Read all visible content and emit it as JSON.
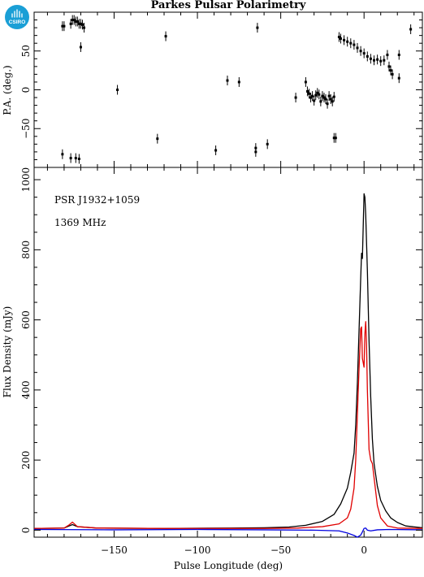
{
  "title": "Parkes Pulsar Polarimetry",
  "logo_text": "CSIRO",
  "colors": {
    "total_intensity": "#000000",
    "linear_polarization": "#e00000",
    "circular_polarization": "#0000e0",
    "logo": "#1a9fd6"
  },
  "chart_data": [
    {
      "type": "scatter",
      "panel": "position-angle",
      "ylabel": "P.A. (deg.)",
      "xlim": [
        -198,
        35
      ],
      "ylim": [
        -100,
        100
      ],
      "yticks": [
        -50,
        0,
        50
      ],
      "error_bars": true,
      "x": [
        -181,
        -180,
        -176,
        -175,
        -174,
        -173,
        -172,
        -171,
        -170,
        -169,
        -168,
        -170,
        -148,
        -124,
        -119,
        -89,
        -82,
        -75,
        -65,
        -65,
        -64,
        -58,
        -41,
        -35,
        -34,
        -33,
        -32,
        -31,
        -30,
        -29,
        -28,
        -27,
        -26,
        -25,
        -24,
        -23,
        -22,
        -21,
        -20,
        -19,
        -18,
        -17,
        -18,
        -15,
        -14,
        -12,
        -10,
        -8,
        -6,
        -4,
        -2,
        0,
        2,
        4,
        6,
        8,
        10,
        12,
        14,
        15,
        16,
        17,
        21,
        21,
        28,
        -181,
        -176,
        -173,
        -171
      ],
      "y": [
        82,
        82,
        85,
        90,
        90,
        88,
        88,
        85,
        85,
        84,
        80,
        55,
        0,
        -63,
        69,
        -78,
        12,
        10,
        -75,
        -80,
        80,
        -70,
        -10,
        10,
        -2,
        -5,
        -10,
        -8,
        -14,
        -7,
        -4,
        -6,
        -15,
        -8,
        -10,
        -12,
        -18,
        -8,
        -12,
        -15,
        -9,
        -62,
        -62,
        68,
        66,
        64,
        62,
        60,
        58,
        54,
        50,
        47,
        43,
        40,
        38,
        39,
        37,
        38,
        45,
        30,
        25,
        20,
        45,
        15,
        78,
        -83,
        -88,
        -88,
        -89
      ]
    },
    {
      "type": "line",
      "panel": "flux-profile",
      "xlabel": "Pulse Longitude (deg)",
      "ylabel": "Flux Density (mJy)",
      "xlim": [
        -198,
        35
      ],
      "ylim": [
        -20,
        1035
      ],
      "xticks": [
        -150,
        -100,
        -50,
        0
      ],
      "yticks": [
        0,
        200,
        400,
        600,
        800,
        1000
      ],
      "annotations": [
        "PSR J1932+1059",
        "1369 MHz"
      ],
      "series": [
        {
          "color": "#000000",
          "x": [
            -198,
            -180,
            -177,
            -175,
            -172,
            -160,
            -120,
            -80,
            -60,
            -45,
            -35,
            -25,
            -18,
            -14,
            -10,
            -8,
            -6,
            -5,
            -4,
            -3,
            -2,
            -1.5,
            -1,
            0,
            0.5,
            1,
            2,
            3,
            4,
            5,
            6,
            8,
            10,
            13,
            16,
            20,
            25,
            35
          ],
          "y": [
            5,
            6,
            12,
            16,
            10,
            6,
            5,
            6,
            7,
            9,
            14,
            25,
            45,
            75,
            120,
            165,
            220,
            300,
            420,
            570,
            720,
            790,
            775,
            960,
            950,
            900,
            740,
            540,
            380,
            260,
            190,
            125,
            85,
            55,
            35,
            22,
            12,
            7
          ]
        },
        {
          "color": "#e00000",
          "x": [
            -198,
            -180,
            -177,
            -175,
            -172,
            -160,
            -120,
            -80,
            -60,
            -40,
            -25,
            -15,
            -10,
            -8,
            -6,
            -5,
            -4,
            -3,
            -2,
            -1.5,
            -1,
            0,
            0.5,
            1,
            1.5,
            2,
            3,
            4,
            5,
            6,
            8,
            10,
            14,
            20,
            35
          ],
          "y": [
            5,
            6,
            15,
            23,
            10,
            6,
            5,
            5,
            5,
            6,
            10,
            18,
            35,
            60,
            120,
            200,
            330,
            460,
            575,
            580,
            490,
            465,
            560,
            595,
            530,
            400,
            230,
            200,
            190,
            150,
            70,
            35,
            12,
            6,
            5
          ]
        },
        {
          "color": "#0000e0",
          "x": [
            -198,
            -150,
            -100,
            -60,
            -30,
            -15,
            -10,
            -6,
            -4,
            -2,
            -1,
            0,
            1,
            2,
            4,
            8,
            15,
            35
          ],
          "y": [
            2,
            1,
            2,
            1,
            0,
            -2,
            -8,
            -15,
            -20,
            -14,
            -5,
            5,
            6,
            0,
            -2,
            1,
            2,
            1
          ]
        }
      ]
    }
  ]
}
